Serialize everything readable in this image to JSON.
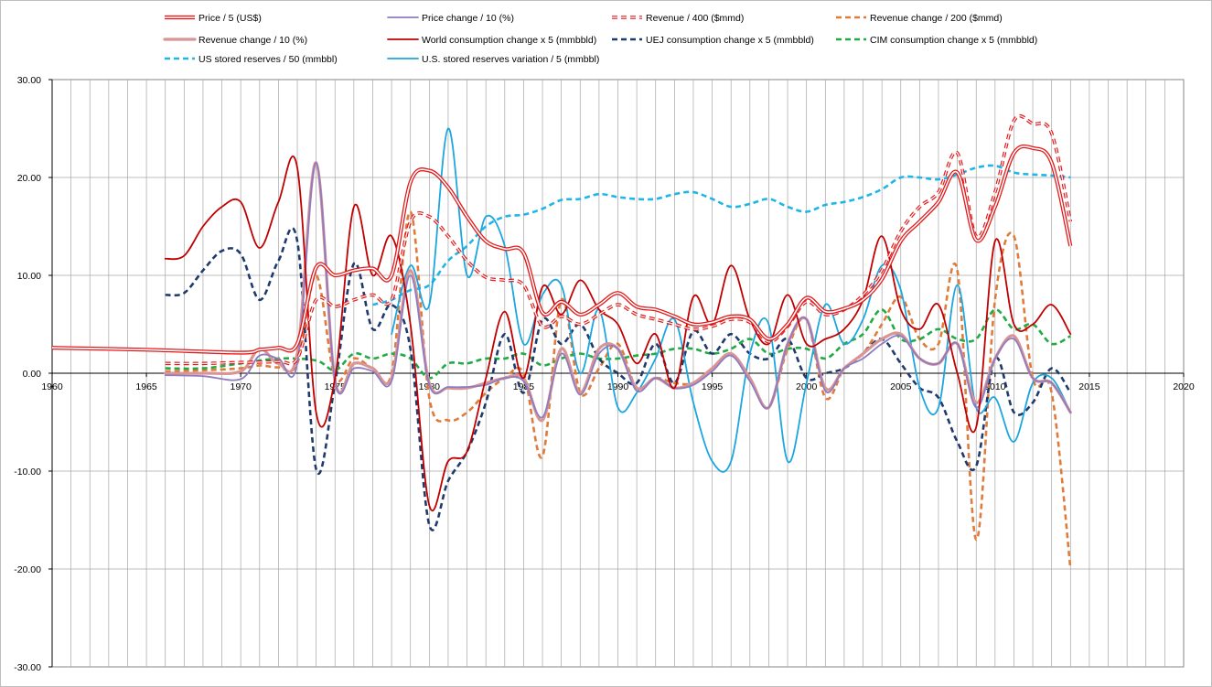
{
  "chart_data": {
    "type": "line",
    "title": "",
    "xlabel": "",
    "ylabel": "",
    "xlim": [
      1960,
      2020
    ],
    "ylim": [
      -30,
      30
    ],
    "x_ticks": [
      "1960",
      "1965",
      "1970",
      "1975",
      "1980",
      "1985",
      "1990",
      "1995",
      "2000",
      "2005",
      "2010",
      "2015",
      "2020"
    ],
    "y_ticks": [
      "30.00",
      "20.00",
      "10.00",
      "0.00",
      "-10.00",
      "-20.00",
      "-30.00"
    ],
    "grid": true,
    "legend_position": "top",
    "series": [
      {
        "name": "Price / 5 (US$)",
        "color": "#e31a1c",
        "style": "double",
        "x": [
          1960,
          1965,
          1970,
          1971,
          1972,
          1973,
          1974,
          1975,
          1976,
          1977,
          1978,
          1979,
          1980,
          1981,
          1982,
          1983,
          1984,
          1985,
          1986,
          1987,
          1988,
          1989,
          1990,
          1991,
          1992,
          1993,
          1994,
          1995,
          1996,
          1997,
          1998,
          1999,
          2000,
          2001,
          2002,
          2003,
          2004,
          2005,
          2006,
          2007,
          2008,
          2009,
          2010,
          2011,
          2012,
          2013,
          2014
        ],
        "values": [
          2.6,
          2.4,
          2.1,
          2.4,
          2.6,
          3.0,
          10.8,
          10.0,
          10.5,
          10.7,
          10.0,
          19.5,
          20.7,
          19.0,
          16.0,
          13.5,
          12.7,
          12.3,
          6.2,
          7.3,
          6.0,
          7.0,
          8.2,
          6.8,
          6.5,
          5.8,
          5.0,
          5.2,
          5.8,
          5.5,
          3.5,
          5.0,
          7.7,
          6.3,
          6.6,
          7.5,
          9.6,
          13.5,
          15.5,
          17.5,
          20.5,
          13.6,
          17.0,
          22.5,
          23.0,
          21.5,
          13.0
        ]
      },
      {
        "name": "Price change / 10 (%)",
        "color": "#8e7cc3",
        "style": "solid",
        "x": [
          1966,
          1968,
          1970,
          1971,
          1972,
          1973,
          1974,
          1975,
          1976,
          1977,
          1978,
          1979,
          1980,
          1981,
          1982,
          1983,
          1984,
          1985,
          1986,
          1987,
          1988,
          1989,
          1990,
          1991,
          1992,
          1993,
          1994,
          1995,
          1996,
          1997,
          1998,
          1999,
          2000,
          2001,
          2002,
          2003,
          2004,
          2005,
          2006,
          2007,
          2008,
          2009,
          2010,
          2011,
          2012,
          2013,
          2014
        ],
        "values": [
          -0.2,
          -0.3,
          -0.6,
          1.8,
          1.5,
          1.0,
          21.5,
          -0.8,
          0.5,
          0.2,
          -0.8,
          10.0,
          -1.2,
          -1.4,
          -1.4,
          -1.2,
          -0.5,
          -0.8,
          -4.5,
          2.0,
          -2.2,
          2.0,
          2.5,
          -1.8,
          -0.5,
          -1.5,
          -1.2,
          0.2,
          1.8,
          -0.8,
          -3.5,
          3.0,
          5.5,
          -1.8,
          0.5,
          1.5,
          3.0,
          3.8,
          1.5,
          1.0,
          3.0,
          -3.5,
          1.5,
          3.5,
          -0.5,
          -1.0,
          -4.0
        ]
      },
      {
        "name": "Revenue / 400 ($mmd)",
        "color": "#e31a1c",
        "style": "dashed",
        "x": [
          1966,
          1968,
          1970,
          1972,
          1973,
          1974,
          1975,
          1976,
          1977,
          1978,
          1979,
          1980,
          1981,
          1982,
          1983,
          1984,
          1985,
          1986,
          1987,
          1988,
          1989,
          1990,
          1991,
          1992,
          1993,
          1994,
          1995,
          1996,
          1997,
          1998,
          1999,
          2000,
          2001,
          2002,
          2003,
          2004,
          2005,
          2006,
          2007,
          2008,
          2009,
          2010,
          2011,
          2012,
          2013,
          2014
        ],
        "values": [
          1.0,
          1.0,
          1.1,
          1.2,
          1.5,
          7.5,
          6.8,
          7.5,
          8.0,
          7.5,
          15.5,
          16.0,
          14.0,
          11.5,
          9.8,
          9.5,
          9.0,
          4.8,
          5.8,
          5.0,
          6.0,
          7.0,
          6.0,
          5.5,
          5.0,
          4.5,
          4.8,
          5.5,
          5.2,
          3.2,
          4.8,
          7.3,
          6.0,
          6.5,
          8.0,
          10.5,
          14.5,
          17.0,
          18.5,
          22.5,
          14.0,
          18.5,
          25.8,
          25.5,
          24.5,
          15.5
        ]
      },
      {
        "name": "Revenue change / 200 ($mmd)",
        "color": "#e07b39",
        "style": "dashed",
        "x": [
          1966,
          1968,
          1970,
          1971,
          1972,
          1973,
          1974,
          1975,
          1976,
          1977,
          1978,
          1979,
          1980,
          1981,
          1982,
          1983,
          1984,
          1985,
          1986,
          1987,
          1988,
          1989,
          1990,
          1991,
          1992,
          1993,
          1994,
          1995,
          1996,
          1997,
          1998,
          1999,
          2000,
          2001,
          2002,
          2003,
          2004,
          2005,
          2006,
          2007,
          2008,
          2009,
          2010,
          2011,
          2012,
          2013,
          2014
        ],
        "values": [
          0.2,
          0.3,
          0.5,
          0.8,
          0.6,
          1.0,
          10.0,
          -0.5,
          1.5,
          0.5,
          0.0,
          16.5,
          -2.5,
          -4.8,
          -4.0,
          -2.0,
          -0.5,
          0.0,
          -8.5,
          7.5,
          -2.0,
          0.5,
          3.0,
          -1.5,
          -0.5,
          -1.0,
          -1.0,
          0.5,
          2.0,
          -0.5,
          -3.5,
          2.5,
          5.5,
          -2.5,
          0.5,
          2.0,
          5.0,
          7.8,
          3.5,
          3.0,
          10.5,
          -17.0,
          7.5,
          14.0,
          -0.5,
          -2.0,
          -20.0
        ]
      },
      {
        "name": "Revenue change / 10 (%)",
        "color": "#d99594",
        "style": "thick",
        "x": [
          1966,
          1968,
          1970,
          1971,
          1972,
          1973,
          1974,
          1975,
          1976,
          1977,
          1978,
          1979,
          1980,
          1981,
          1982,
          1983,
          1984,
          1985,
          1986,
          1987,
          1988,
          1989,
          1990,
          1991,
          1992,
          1993,
          1994,
          1995,
          1996,
          1997,
          1998,
          1999,
          2000,
          2001,
          2002,
          2003,
          2004,
          2005,
          2006,
          2007,
          2008,
          2009,
          2010,
          2011,
          2012,
          2013,
          2014
        ],
        "values": [
          0.0,
          0.0,
          0.2,
          2.5,
          1.0,
          2.0,
          21.5,
          -0.8,
          1.0,
          0.5,
          -0.5,
          10.5,
          -1.0,
          -1.5,
          -1.5,
          -1.0,
          -0.5,
          -0.5,
          -4.8,
          2.5,
          -2.0,
          2.5,
          2.5,
          -1.5,
          -0.5,
          -1.5,
          -1.0,
          0.5,
          2.0,
          -0.5,
          -3.5,
          3.0,
          5.5,
          -1.5,
          0.5,
          2.0,
          3.5,
          4.0,
          1.5,
          1.0,
          3.0,
          -3.0,
          1.5,
          3.8,
          -0.5,
          -1.0,
          -4.0
        ]
      },
      {
        "name": "World consumption change x 5  (mmbbld)",
        "color": "#c00000",
        "style": "solid",
        "x": [
          1966,
          1967,
          1968,
          1969,
          1970,
          1971,
          1972,
          1973,
          1974,
          1975,
          1976,
          1977,
          1978,
          1979,
          1980,
          1981,
          1982,
          1983,
          1984,
          1985,
          1986,
          1987,
          1988,
          1989,
          1990,
          1991,
          1992,
          1993,
          1994,
          1995,
          1996,
          1997,
          1998,
          1999,
          2000,
          2001,
          2002,
          2003,
          2004,
          2005,
          2006,
          2007,
          2008,
          2009,
          2010,
          2011,
          2012,
          2013,
          2014
        ],
        "values": [
          11.7,
          12.0,
          15.0,
          17.0,
          17.5,
          12.8,
          17.5,
          21.0,
          -4.0,
          -0.5,
          17.0,
          10.0,
          14.0,
          5.0,
          -13.5,
          -9.0,
          -8.0,
          -0.5,
          6.3,
          -0.5,
          8.8,
          6.0,
          9.5,
          6.5,
          5.0,
          1.0,
          4.0,
          -1.5,
          7.8,
          5.0,
          11.0,
          5.5,
          3.0,
          8.0,
          3.0,
          3.5,
          4.5,
          7.5,
          14.0,
          6.5,
          4.5,
          7.0,
          0.0,
          -5.5,
          13.5,
          5.0,
          5.0,
          7.0,
          4.0
        ]
      },
      {
        "name": "UEJ consumption change x 5  (mmbbld)",
        "color": "#1f3b6e",
        "style": "dashed",
        "x": [
          1966,
          1967,
          1968,
          1969,
          1970,
          1971,
          1972,
          1973,
          1974,
          1975,
          1976,
          1977,
          1978,
          1979,
          1980,
          1981,
          1982,
          1983,
          1984,
          1985,
          1986,
          1987,
          1988,
          1989,
          1990,
          1991,
          1992,
          1993,
          1994,
          1995,
          1996,
          1997,
          1998,
          1999,
          2000,
          2001,
          2002,
          2003,
          2004,
          2005,
          2006,
          2007,
          2008,
          2009,
          2010,
          2011,
          2012,
          2013,
          2014
        ],
        "values": [
          8.0,
          8.2,
          10.5,
          12.5,
          12.2,
          7.5,
          11.5,
          13.5,
          -9.8,
          -1.0,
          11.2,
          4.5,
          7.0,
          2.5,
          -15.5,
          -11.0,
          -8.0,
          -3.0,
          4.0,
          -2.0,
          5.5,
          3.0,
          5.0,
          1.5,
          0.0,
          -1.0,
          3.0,
          -1.0,
          4.3,
          2.0,
          4.0,
          2.0,
          1.5,
          3.5,
          -0.5,
          0.0,
          0.5,
          2.0,
          3.5,
          1.0,
          -1.5,
          -2.5,
          -7.0,
          -9.5,
          1.5,
          -4.0,
          -3.0,
          0.5,
          -2.0
        ]
      },
      {
        "name": "CIM consumption change x 5  (mmbbld)",
        "color": "#22aa44",
        "style": "dashed",
        "x": [
          1966,
          1968,
          1970,
          1972,
          1974,
          1975,
          1976,
          1977,
          1978,
          1979,
          1980,
          1981,
          1982,
          1983,
          1984,
          1985,
          1986,
          1987,
          1988,
          1989,
          1990,
          1991,
          1992,
          1993,
          1994,
          1995,
          1996,
          1997,
          1998,
          1999,
          2000,
          2001,
          2002,
          2003,
          2004,
          2005,
          2006,
          2007,
          2008,
          2009,
          2010,
          2011,
          2012,
          2013,
          2014
        ],
        "values": [
          0.5,
          0.5,
          1.0,
          1.5,
          1.3,
          0.3,
          2.0,
          1.5,
          2.0,
          1.5,
          -0.5,
          1.0,
          1.0,
          1.5,
          1.5,
          2.0,
          0.8,
          1.5,
          2.0,
          1.5,
          1.5,
          1.8,
          2.0,
          2.5,
          2.5,
          2.0,
          2.5,
          3.5,
          2.0,
          2.5,
          2.5,
          1.5,
          3.0,
          4.0,
          6.5,
          3.5,
          3.5,
          4.5,
          3.5,
          3.5,
          6.5,
          4.5,
          5.0,
          3.0,
          3.8
        ]
      },
      {
        "name": "US stored reserves / 50 (mmbbl)",
        "color": "#1fb5e8",
        "style": "dashed",
        "x": [
          1977,
          1978,
          1979,
          1980,
          1981,
          1982,
          1983,
          1984,
          1985,
          1986,
          1987,
          1988,
          1989,
          1990,
          1991,
          1992,
          1993,
          1994,
          1995,
          1996,
          1997,
          1998,
          1999,
          2000,
          2001,
          2002,
          2003,
          2004,
          2005,
          2006,
          2007,
          2008,
          2009,
          2010,
          2011,
          2012,
          2013,
          2014
        ],
        "values": [
          7.0,
          7.5,
          8.5,
          9.0,
          11.5,
          13.0,
          15.0,
          16.0,
          16.2,
          16.8,
          17.7,
          17.8,
          18.3,
          18.0,
          17.8,
          17.8,
          18.3,
          18.5,
          17.8,
          17.0,
          17.3,
          17.8,
          17.0,
          16.5,
          17.2,
          17.5,
          18.0,
          18.8,
          20.0,
          20.0,
          19.8,
          20.3,
          21.0,
          21.2,
          20.5,
          20.3,
          20.2,
          20.0
        ]
      },
      {
        "name": "U.S. stored reserves variation / 5 (mmbbl)",
        "color": "#1ba6e0",
        "style": "solid",
        "x": [
          1978,
          1979,
          1980,
          1981,
          1982,
          1983,
          1984,
          1985,
          1986,
          1987,
          1988,
          1989,
          1990,
          1991,
          1992,
          1993,
          1994,
          1995,
          1996,
          1997,
          1998,
          1999,
          2000,
          2001,
          2002,
          2003,
          2004,
          2005,
          2006,
          2007,
          2008,
          2009,
          2010,
          2011,
          2012,
          2013,
          2014
        ],
        "values": [
          4.0,
          11.0,
          7.0,
          25.0,
          10.0,
          16.0,
          13.0,
          3.0,
          8.0,
          9.0,
          0.0,
          6.5,
          -3.5,
          -2.0,
          1.5,
          5.5,
          -3.0,
          -9.0,
          -9.0,
          2.0,
          5.0,
          -9.0,
          -1.0,
          7.0,
          3.0,
          5.5,
          11.0,
          8.5,
          -1.5,
          -3.5,
          9.0,
          -3.5,
          -2.5,
          -7.0,
          -1.0,
          -0.5,
          -4.0
        ]
      }
    ]
  }
}
